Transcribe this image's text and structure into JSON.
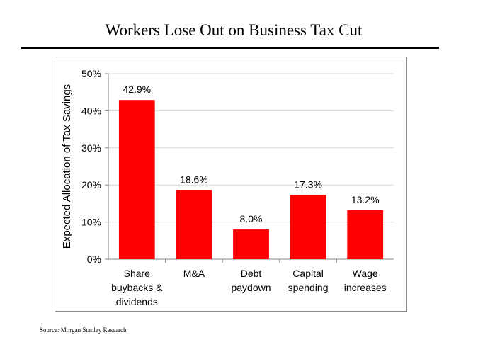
{
  "title": "Workers Lose Out on Business Tax Cut",
  "source": "Source: Morgan Stanley Research",
  "colors": {
    "bar": "#ff0000",
    "grid": "#d9d9d9",
    "axis": "#868686",
    "text": "#000000"
  },
  "chart_data": {
    "type": "bar",
    "title": "",
    "xlabel": "",
    "ylabel": "Expected Allocation of Tax Savings",
    "ylim": [
      0,
      50
    ],
    "yticks": [
      "0%",
      "10%",
      "20%",
      "30%",
      "40%",
      "50%"
    ],
    "categories": [
      [
        "Share",
        "buybacks &",
        "dividends"
      ],
      [
        "M&A"
      ],
      [
        "Debt",
        "paydown"
      ],
      [
        "Capital",
        "spending"
      ],
      [
        "Wage",
        "increases"
      ]
    ],
    "values": [
      42.9,
      18.6,
      8.0,
      17.3,
      13.2
    ],
    "data_labels": [
      "42.9%",
      "18.6%",
      "8.0%",
      "17.3%",
      "13.2%"
    ],
    "grid": true,
    "legend": "none"
  }
}
